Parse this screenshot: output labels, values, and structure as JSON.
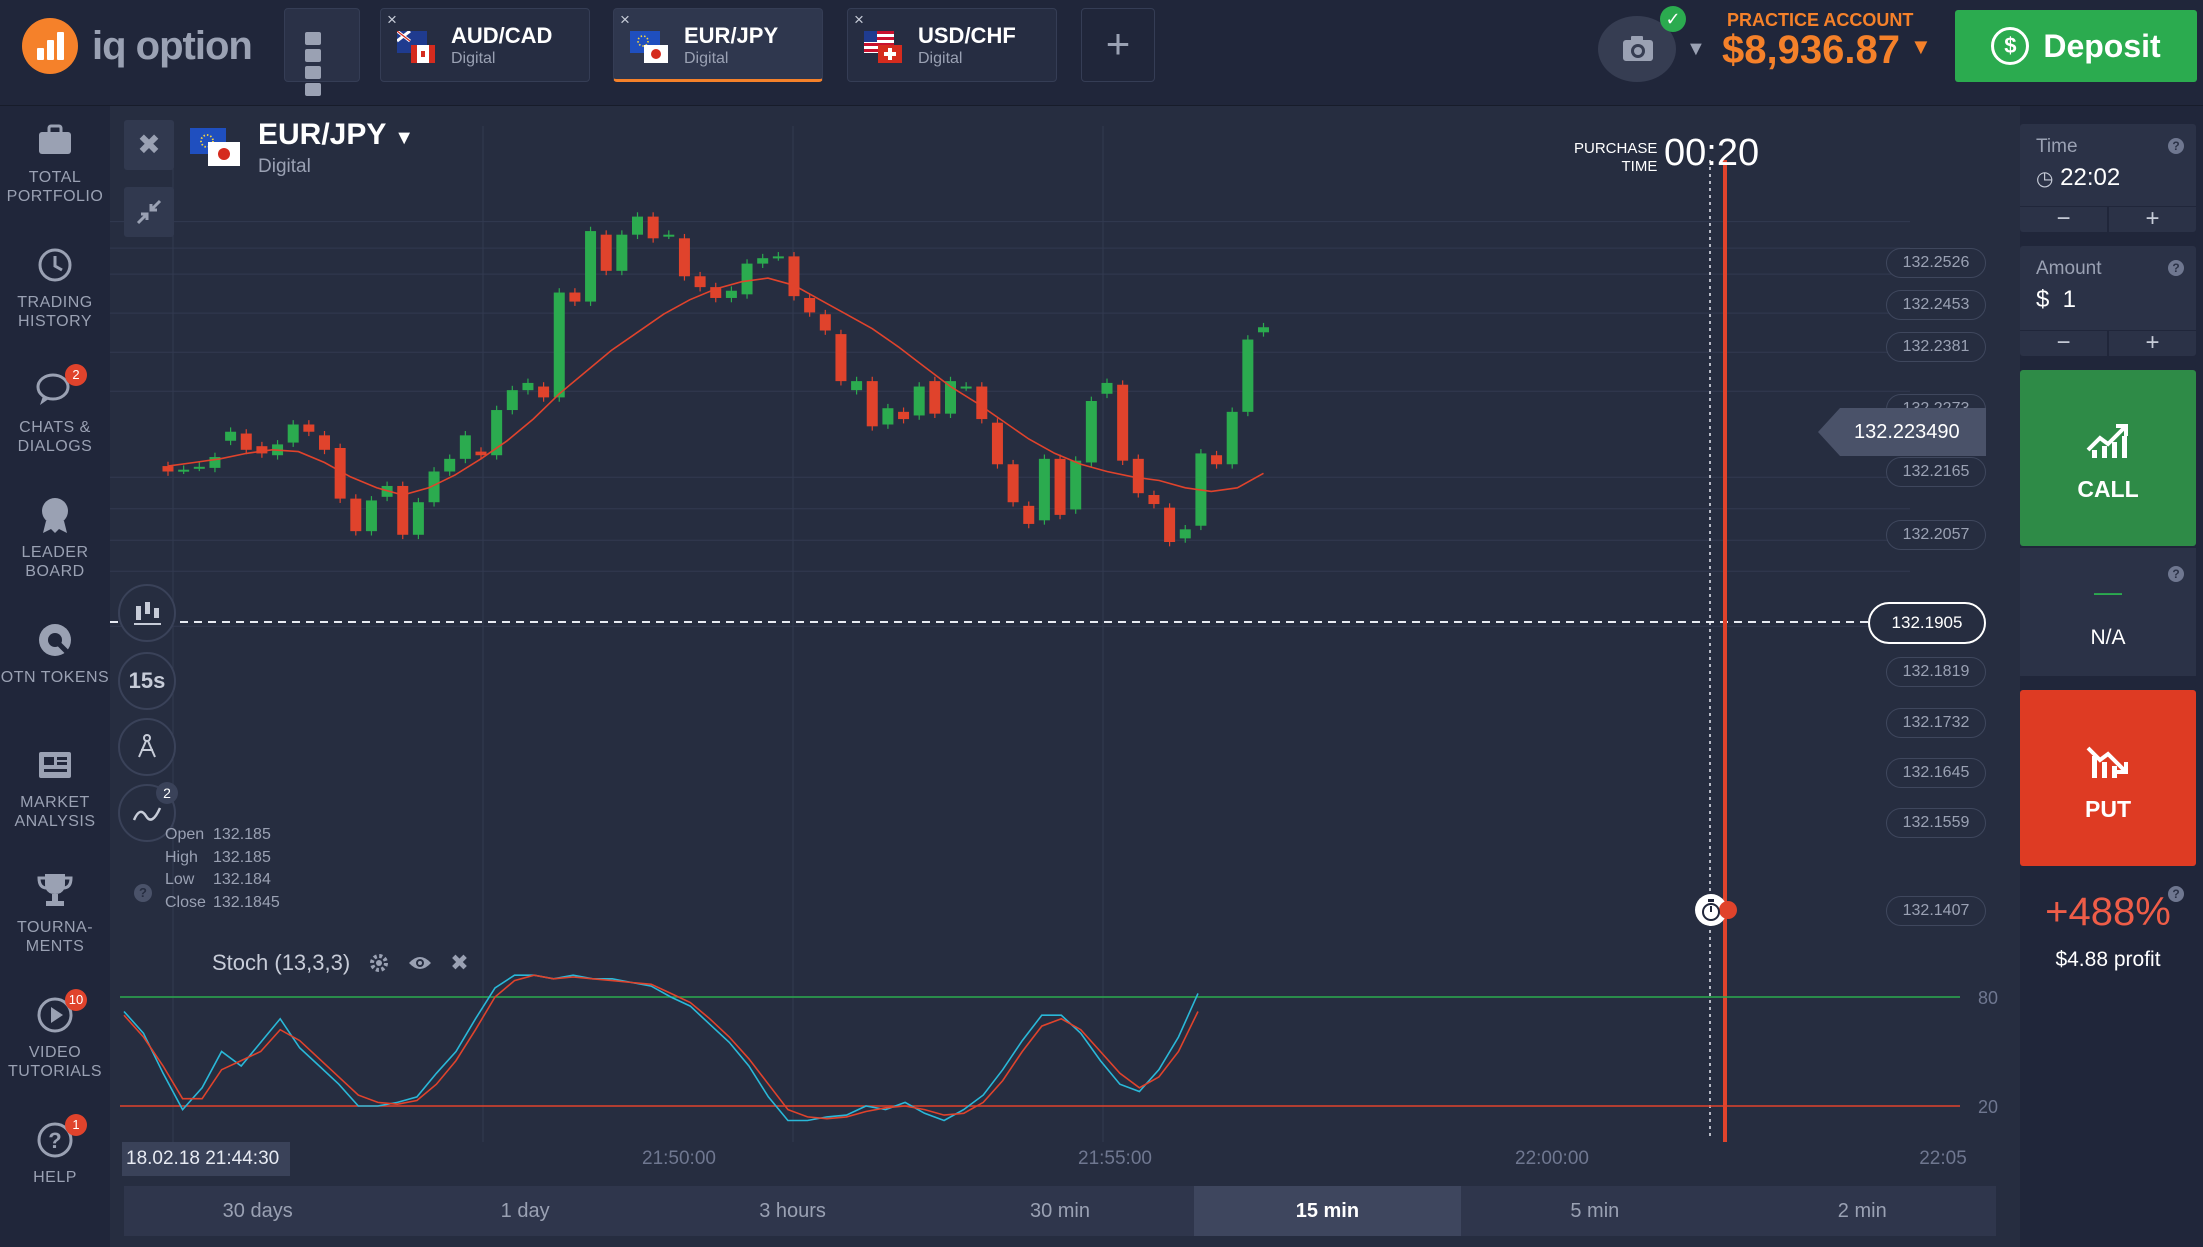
{
  "brand": {
    "name": "iq option"
  },
  "header": {
    "tabs": [
      {
        "name": "AUD/CAD",
        "type": "Digital",
        "active": false
      },
      {
        "name": "EUR/JPY",
        "type": "Digital",
        "active": true
      },
      {
        "name": "USD/CHF",
        "type": "Digital",
        "active": false
      }
    ],
    "close_glyph": "×",
    "add_tab_glyph": "+",
    "account_label": "PRACTICE ACCOUNT",
    "balance": "$8,936.87",
    "deposit_label": "Deposit",
    "deposit_icon": "$"
  },
  "sidebar": {
    "items": [
      {
        "label": "TOTAL PORTFOLIO",
        "icon": "briefcase-icon",
        "badge": ""
      },
      {
        "label": "TRADING HISTORY",
        "icon": "history-icon",
        "badge": ""
      },
      {
        "label": "CHATS & DIALOGS",
        "icon": "chat-icon",
        "badge": "2"
      },
      {
        "label": "LEADER BOARD",
        "icon": "leaderboard-icon",
        "badge": ""
      },
      {
        "label": "OTN TOKENS",
        "icon": "token-icon",
        "badge": ""
      },
      {
        "label": "MARKET ANALYSIS",
        "icon": "news-icon",
        "badge": ""
      },
      {
        "label": "TOURNA- MENTS",
        "icon": "trophy-icon",
        "badge": ""
      },
      {
        "label": "VIDEO TUTORIALS",
        "icon": "play-icon",
        "badge": "10"
      },
      {
        "label": "HELP",
        "icon": "help-icon",
        "badge": "1"
      }
    ]
  },
  "asset": {
    "name": "EUR/JPY",
    "type": "Digital"
  },
  "chart_tools": {
    "interval_label": "15s",
    "indicators_badge": "2"
  },
  "ohlc": {
    "labels": [
      "Open",
      "High",
      "Low",
      "Close"
    ],
    "values": [
      "132.185",
      "132.185",
      "132.184",
      "132.1845"
    ],
    "help": "?"
  },
  "purchase": {
    "label_1": "PURCHASE",
    "label_2": "TIME",
    "value": "00:20"
  },
  "price_scale": [
    "132.2526",
    "132.2453",
    "132.2381",
    "132.2273",
    "132.2165",
    "132.2057",
    "132.1819",
    "132.1732",
    "132.1645",
    "132.1559",
    "132.1407"
  ],
  "current_price": "132.223490",
  "last_price": "132.1905",
  "stochastic": {
    "label": "Stoch (13,3,3)",
    "upper": "80",
    "lower": "20"
  },
  "time_axis": {
    "date_label": "18.02.18 21:44:30",
    "labels": [
      "21:50:00",
      "21:55:00",
      "22:00:00",
      "22:05"
    ]
  },
  "periods": [
    {
      "label": "30 days"
    },
    {
      "label": "1 day"
    },
    {
      "label": "3 hours"
    },
    {
      "label": "30 min"
    },
    {
      "label": "15 min",
      "active": true
    },
    {
      "label": "5 min"
    },
    {
      "label": "2 min"
    }
  ],
  "trade_panel": {
    "time_label": "Time",
    "time_value": "22:02",
    "amount_label": "Amount",
    "amount_value": "$  1",
    "minus": "−",
    "plus": "+",
    "help": "?",
    "call_label": "CALL",
    "put_label": "PUT",
    "na_dash": "—",
    "na_label": "N/A",
    "profit_pct": "+488%",
    "profit_amount": "$4.88 profit"
  },
  "chart_data": {
    "type": "candlestick",
    "x_axis": {
      "labels": [
        "21:50:00",
        "21:55:00",
        "22:00:00",
        "22:05"
      ]
    },
    "y_axis": {
      "range": [
        132.138,
        132.268
      ],
      "ticks": [
        132.2526,
        132.2453,
        132.2381,
        132.2273,
        132.2165,
        132.2057,
        132.1819,
        132.1732,
        132.1645,
        132.1559,
        132.1407
      ]
    },
    "candles": [
      {
        "o": 132.185,
        "c": 132.1835
      },
      {
        "o": 132.184,
        "c": 132.184
      },
      {
        "o": 132.1848,
        "c": 132.1848
      },
      {
        "o": 132.1845,
        "c": 132.1875
      },
      {
        "o": 132.192,
        "c": 132.1945
      },
      {
        "o": 132.194,
        "c": 132.1895
      },
      {
        "o": 132.1905,
        "c": 132.1885
      },
      {
        "o": 132.188,
        "c": 132.191
      },
      {
        "o": 132.1915,
        "c": 132.1965
      },
      {
        "o": 132.1965,
        "c": 132.1945
      },
      {
        "o": 132.1935,
        "c": 132.1895
      },
      {
        "o": 132.19,
        "c": 132.176
      },
      {
        "o": 132.176,
        "c": 132.167
      },
      {
        "o": 132.167,
        "c": 132.1755
      },
      {
        "o": 132.1765,
        "c": 132.1795
      },
      {
        "o": 132.1795,
        "c": 132.166
      },
      {
        "o": 132.166,
        "c": 132.175
      },
      {
        "o": 132.175,
        "c": 132.1835
      },
      {
        "o": 132.1835,
        "c": 132.187
      },
      {
        "o": 132.187,
        "c": 132.1935
      },
      {
        "o": 132.189,
        "c": 132.188
      },
      {
        "o": 132.188,
        "c": 132.2005
      },
      {
        "o": 132.2005,
        "c": 132.206
      },
      {
        "o": 132.206,
        "c": 132.208
      },
      {
        "o": 132.207,
        "c": 132.204
      },
      {
        "o": 132.204,
        "c": 132.233
      },
      {
        "o": 132.233,
        "c": 132.2305
      },
      {
        "o": 132.2305,
        "c": 132.25
      },
      {
        "o": 132.249,
        "c": 132.239
      },
      {
        "o": 132.239,
        "c": 132.249
      },
      {
        "o": 132.249,
        "c": 132.254
      },
      {
        "o": 132.254,
        "c": 132.248
      },
      {
        "o": 132.249,
        "c": 132.249
      },
      {
        "o": 132.248,
        "c": 132.2375
      },
      {
        "o": 132.2375,
        "c": 132.2345
      },
      {
        "o": 132.2345,
        "c": 132.2315
      },
      {
        "o": 132.2315,
        "c": 132.2335
      },
      {
        "o": 132.2325,
        "c": 132.241
      },
      {
        "o": 132.241,
        "c": 132.2425
      },
      {
        "o": 132.243,
        "c": 132.243
      },
      {
        "o": 132.243,
        "c": 132.232
      },
      {
        "o": 132.2315,
        "c": 132.2275
      },
      {
        "o": 132.227,
        "c": 132.2225
      },
      {
        "o": 132.2215,
        "c": 132.2085
      },
      {
        "o": 132.206,
        "c": 132.2085
      },
      {
        "o": 132.2085,
        "c": 132.196
      },
      {
        "o": 132.1965,
        "c": 132.201
      },
      {
        "o": 132.2,
        "c": 132.198
      },
      {
        "o": 132.199,
        "c": 132.207
      },
      {
        "o": 132.2085,
        "c": 132.1995
      },
      {
        "o": 132.1995,
        "c": 132.2085
      },
      {
        "o": 132.207,
        "c": 132.207
      },
      {
        "o": 132.207,
        "c": 132.198
      },
      {
        "o": 132.197,
        "c": 132.1855
      },
      {
        "o": 132.1855,
        "c": 132.175
      },
      {
        "o": 132.174,
        "c": 132.169
      },
      {
        "o": 132.17,
        "c": 132.187
      },
      {
        "o": 132.187,
        "c": 132.1715
      },
      {
        "o": 132.173,
        "c": 132.1865
      },
      {
        "o": 132.186,
        "c": 132.203
      },
      {
        "o": 132.205,
        "c": 132.208
      },
      {
        "o": 132.2075,
        "c": 132.1865
      },
      {
        "o": 132.187,
        "c": 132.1775
      },
      {
        "o": 132.177,
        "c": 132.1745
      },
      {
        "o": 132.1735,
        "c": 132.164
      },
      {
        "o": 132.165,
        "c": 132.1675
      },
      {
        "o": 132.1685,
        "c": 132.1885
      },
      {
        "o": 132.188,
        "c": 132.1855
      },
      {
        "o": 132.1855,
        "c": 132.2
      },
      {
        "o": 132.2,
        "c": 132.22
      },
      {
        "o": 132.222,
        "c": 132.2234
      }
    ],
    "moving_average": [
      132.185,
      132.186,
      132.187,
      132.1885,
      132.1895,
      132.189,
      132.186,
      132.182,
      132.179,
      132.177,
      132.179,
      132.1825,
      132.187,
      132.192,
      132.198,
      132.205,
      132.211,
      132.217,
      132.222,
      132.227,
      132.231,
      132.234,
      132.236,
      132.237,
      132.235,
      132.231,
      132.227,
      132.223,
      132.218,
      132.2125,
      132.207,
      132.2025,
      132.1975,
      132.1925,
      132.1885,
      132.1855,
      132.1835,
      132.182,
      132.181,
      132.179,
      132.178,
      132.179,
      132.183
    ],
    "stochastic": {
      "fast": [
        72,
        60,
        38,
        18,
        30,
        50,
        42,
        55,
        68,
        52,
        42,
        32,
        20,
        20,
        22,
        25,
        38,
        50,
        68,
        85,
        92,
        92,
        90,
        92,
        90,
        90,
        88,
        86,
        80,
        75,
        65,
        55,
        42,
        25,
        12,
        12,
        14,
        15,
        20,
        18,
        22,
        16,
        12,
        18,
        26,
        40,
        56,
        70,
        70,
        60,
        45,
        32,
        28,
        40,
        58,
        82
      ],
      "slow": [
        70,
        58,
        42,
        24,
        24,
        40,
        45,
        50,
        62,
        56,
        46,
        36,
        26,
        22,
        21,
        23,
        32,
        45,
        62,
        80,
        89,
        92,
        90,
        91,
        90,
        89,
        88,
        87,
        82,
        77,
        68,
        58,
        46,
        32,
        18,
        14,
        13,
        14,
        17,
        19,
        20,
        18,
        15,
        16,
        22,
        34,
        50,
        64,
        68,
        62,
        50,
        38,
        30,
        36,
        50,
        72
      ]
    }
  }
}
